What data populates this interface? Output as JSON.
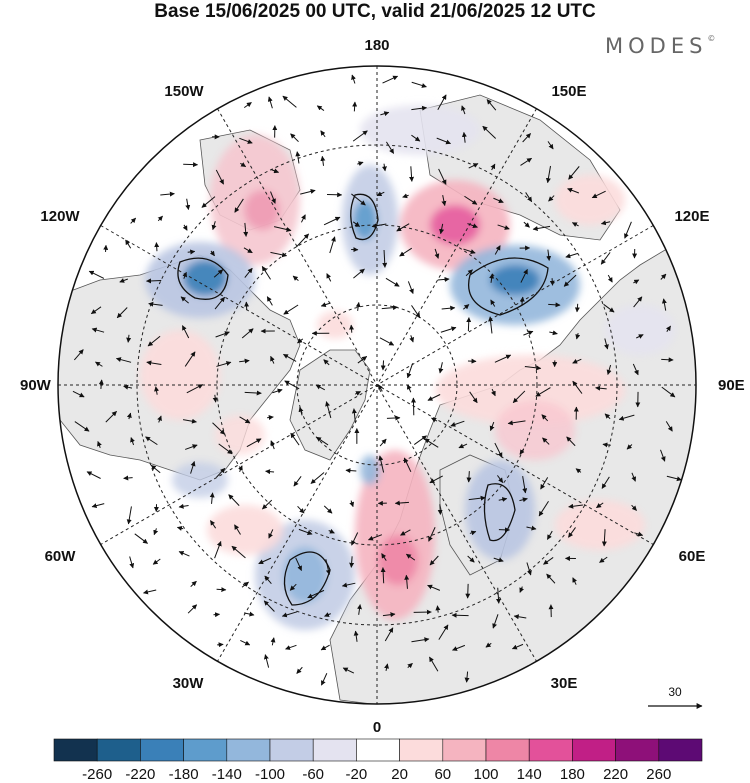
{
  "header": {
    "title": "Base 15/06/2025 00 UTC, valid 21/06/2025 12 UTC",
    "brand": "MODES",
    "brand_mark": "©"
  },
  "map": {
    "projection": "north-polar-stereographic",
    "longitude_labels": {
      "top": "180",
      "bottom": "0",
      "left": "90W",
      "right": "90E",
      "upper_left_1": "150W",
      "upper_left_2": "120W",
      "upper_right_1": "150E",
      "upper_right_2": "120E",
      "lower_left_1": "60W",
      "lower_left_2": "30W",
      "lower_right_1": "60E",
      "lower_right_2": "30E"
    },
    "vector_reference_label": "30",
    "colors": {
      "land": "#e8e8e8",
      "coast": "#555555",
      "grid": "#222222",
      "arrow": "#111111"
    }
  },
  "colorbar": {
    "tick_labels": [
      "-260",
      "-220",
      "-180",
      "-140",
      "-100",
      "-60",
      "-20",
      "20",
      "60",
      "100",
      "140",
      "180",
      "220",
      "260"
    ],
    "colors": [
      "#12324f",
      "#1e5f8c",
      "#3a80b8",
      "#5e9ccc",
      "#93b7dc",
      "#c3cde6",
      "#e4e3f0",
      "#ffffff",
      "#fcdcdc",
      "#f5b4c0",
      "#ee86a6",
      "#e3519a",
      "#c11f86",
      "#8e1079",
      "#5d0a74"
    ]
  }
}
